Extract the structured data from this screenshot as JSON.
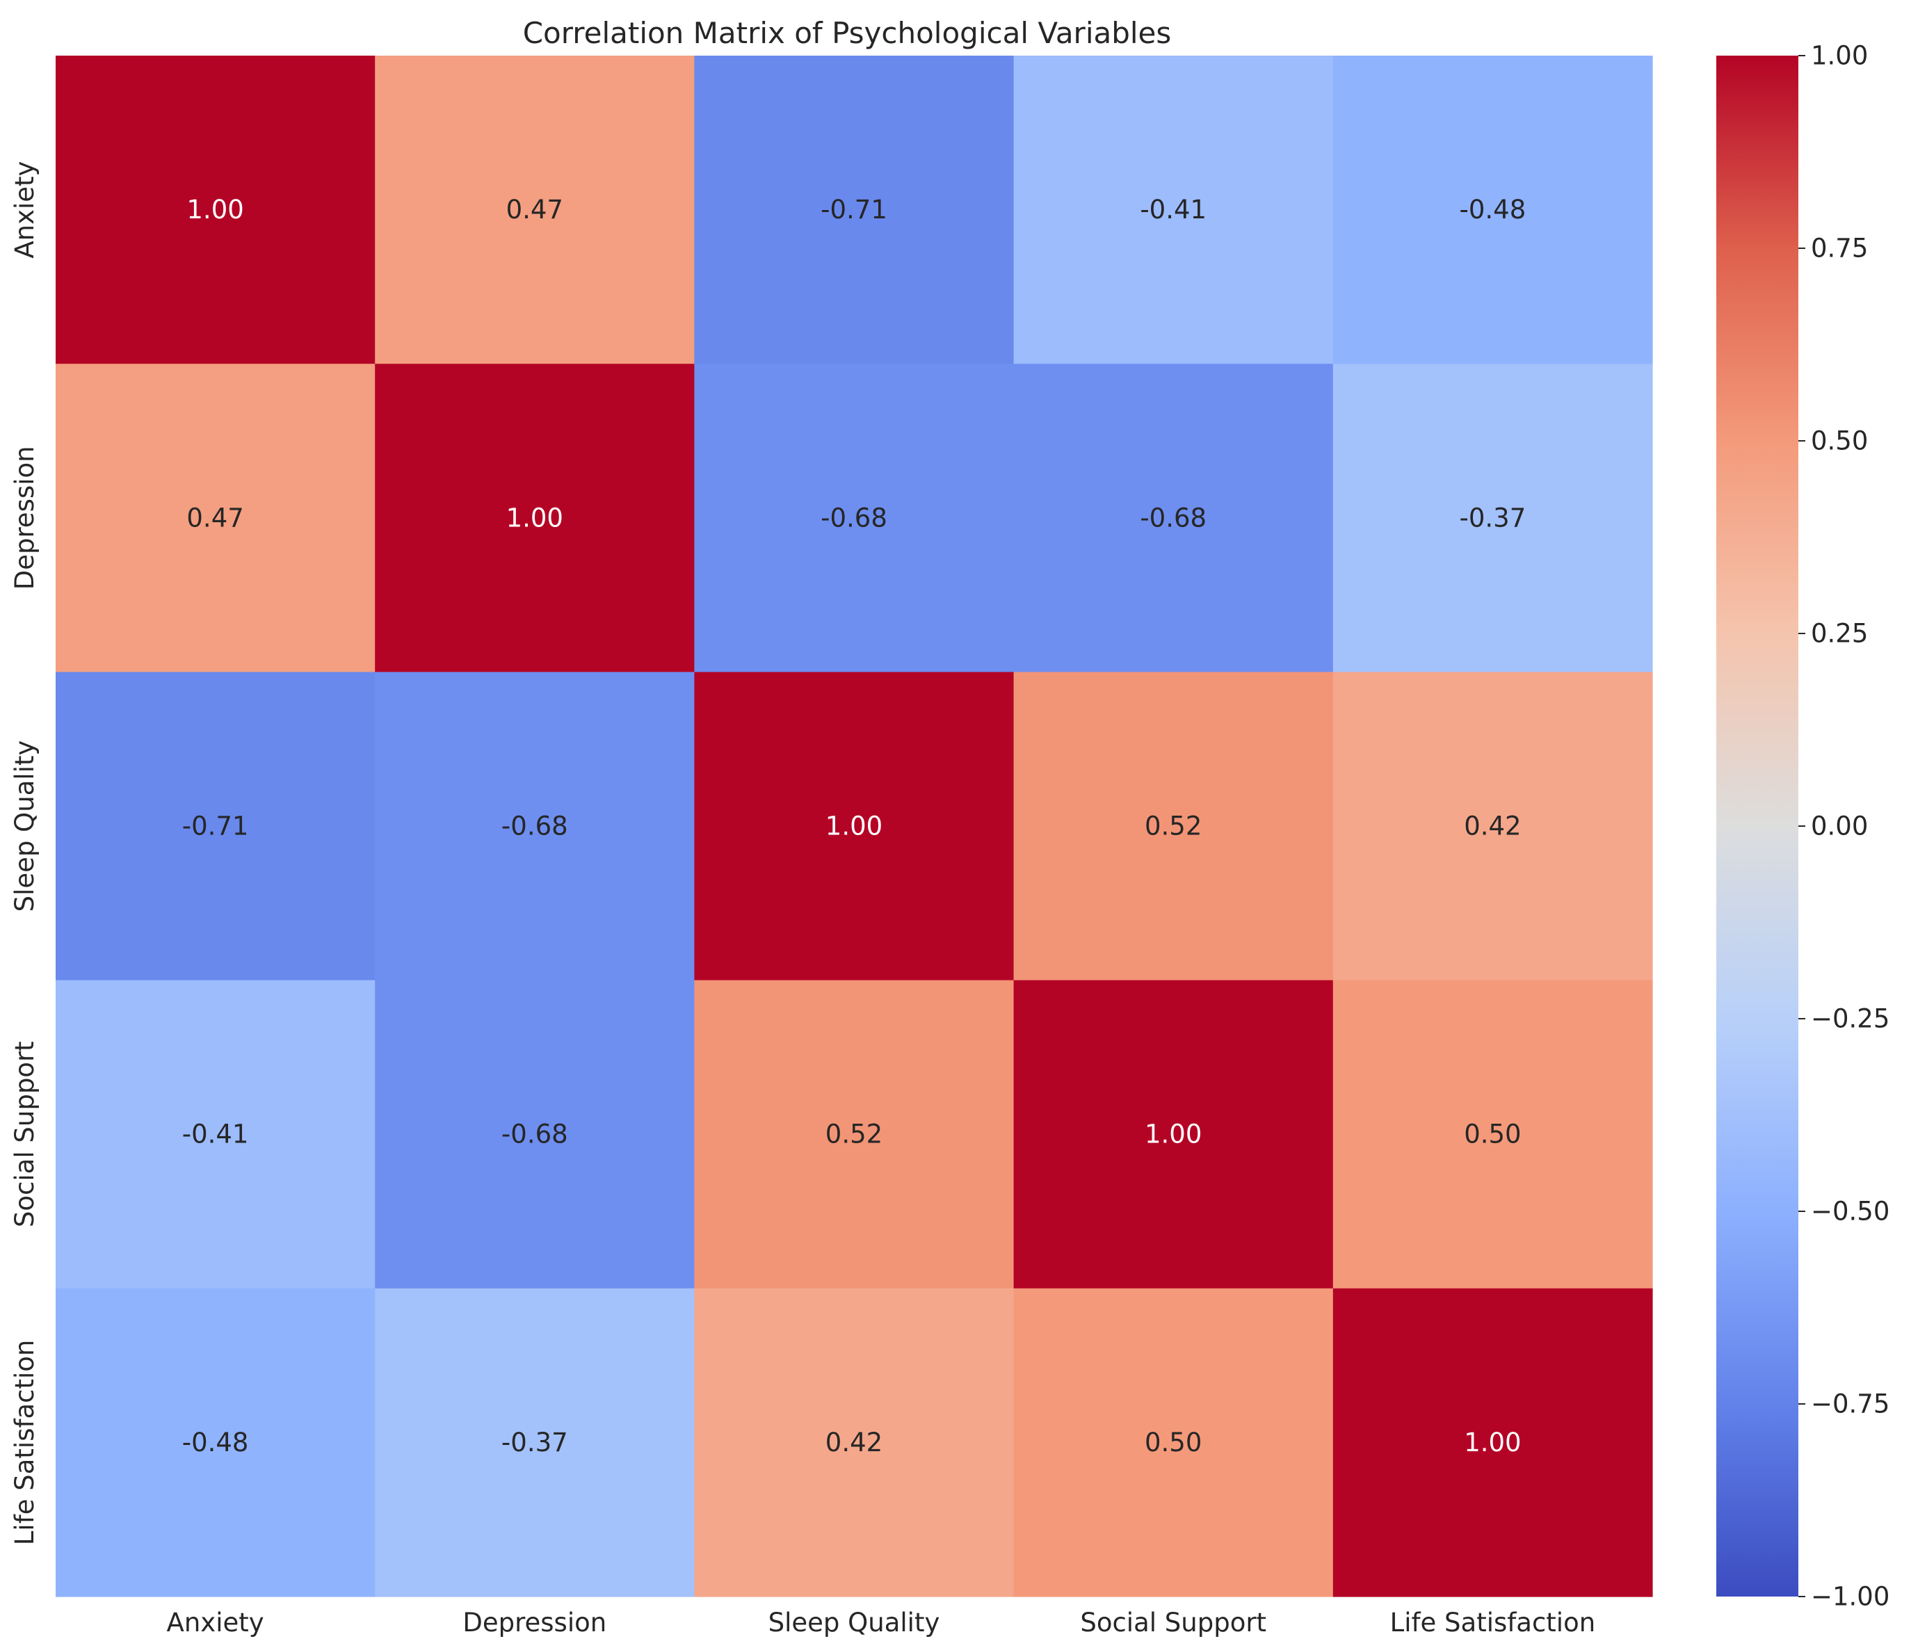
{
  "chart_data": {
    "type": "heatmap",
    "title": "Correlation Matrix of Psychological Variables",
    "xlabel": "",
    "ylabel": "",
    "x_categories": [
      "Anxiety",
      "Depression",
      "Sleep Quality",
      "Social Support",
      "Life Satisfaction"
    ],
    "y_categories": [
      "Anxiety",
      "Depression",
      "Sleep Quality",
      "Social Support",
      "Life Satisfaction"
    ],
    "values": [
      [
        1.0,
        0.47,
        -0.71,
        -0.41,
        -0.48
      ],
      [
        0.47,
        1.0,
        -0.68,
        -0.68,
        -0.37
      ],
      [
        -0.71,
        -0.68,
        1.0,
        0.52,
        0.42
      ],
      [
        -0.41,
        -0.68,
        0.52,
        1.0,
        0.5
      ],
      [
        -0.48,
        -0.37,
        0.42,
        0.5,
        1.0
      ]
    ],
    "annotation_format": "0.00",
    "colormap": "coolwarm",
    "vmin": -1.0,
    "vmax": 1.0,
    "colorbar": {
      "position": "right",
      "ticks": [
        1.0,
        0.75,
        0.5,
        0.25,
        0.0,
        -0.25,
        -0.5,
        -0.75,
        -1.0
      ],
      "tick_labels": [
        "1.00",
        "0.75",
        "0.50",
        "0.25",
        "0.00",
        "−0.25",
        "−0.50",
        "−0.75",
        "−1.00"
      ]
    },
    "grid": false,
    "legend": "none"
  }
}
